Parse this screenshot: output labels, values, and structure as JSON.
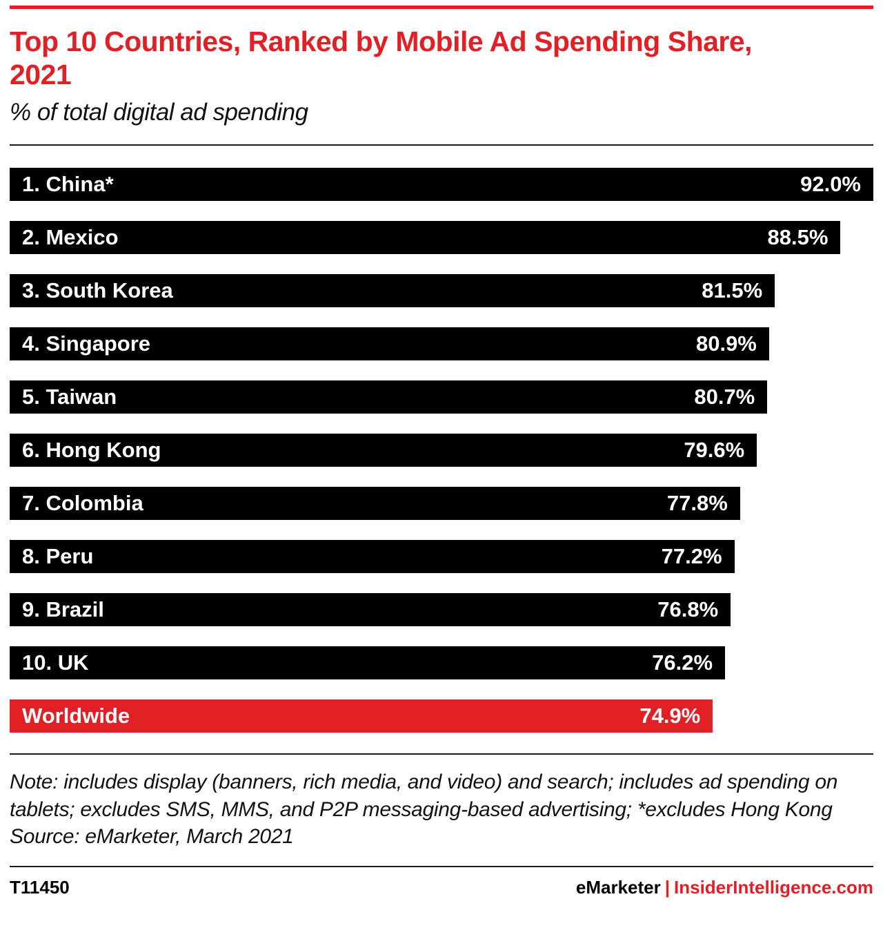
{
  "accent_red": "#e12026",
  "header": {
    "title": "Top 10 Countries, Ranked by Mobile Ad Spending Share, 2021",
    "subtitle": "% of total digital ad spending"
  },
  "chart_data": {
    "type": "bar",
    "orientation": "horizontal",
    "title": "Top 10 Countries, Ranked by Mobile Ad Spending Share, 2021",
    "subtitle": "% of total digital ad spending",
    "unit": "% of total digital ad spending",
    "xlim": [
      0,
      92
    ],
    "grid": false,
    "legend": false,
    "bar_color": "#000000",
    "highlight_color": "#e12026",
    "categories": [
      "1. China*",
      "2. Mexico",
      "3. South Korea",
      "4. Singapore",
      "5. Taiwan",
      "6. Hong Kong",
      "7. Colombia",
      "8. Peru",
      "9. Brazil",
      "10. UK",
      "Worldwide"
    ],
    "values": [
      92.0,
      88.5,
      81.5,
      80.9,
      80.7,
      79.6,
      77.8,
      77.2,
      76.8,
      76.2,
      74.9
    ],
    "value_labels": [
      "92.0%",
      "88.5%",
      "81.5%",
      "80.9%",
      "80.7%",
      "79.6%",
      "77.8%",
      "77.2%",
      "76.8%",
      "76.2%",
      "74.9%"
    ],
    "highlight_category": "Worldwide"
  },
  "notes": {
    "note_text": "Note: includes display (banners, rich media, and video) and search; includes ad spending on tablets; excludes SMS, MMS, and P2P messaging-based advertising; *excludes Hong Kong",
    "source_text": "Source: eMarketer, March 2021"
  },
  "footer": {
    "chart_id": "T11450",
    "brand_left": "eMarketer",
    "brand_separator": "|",
    "brand_right": "InsiderIntelligence.com"
  }
}
